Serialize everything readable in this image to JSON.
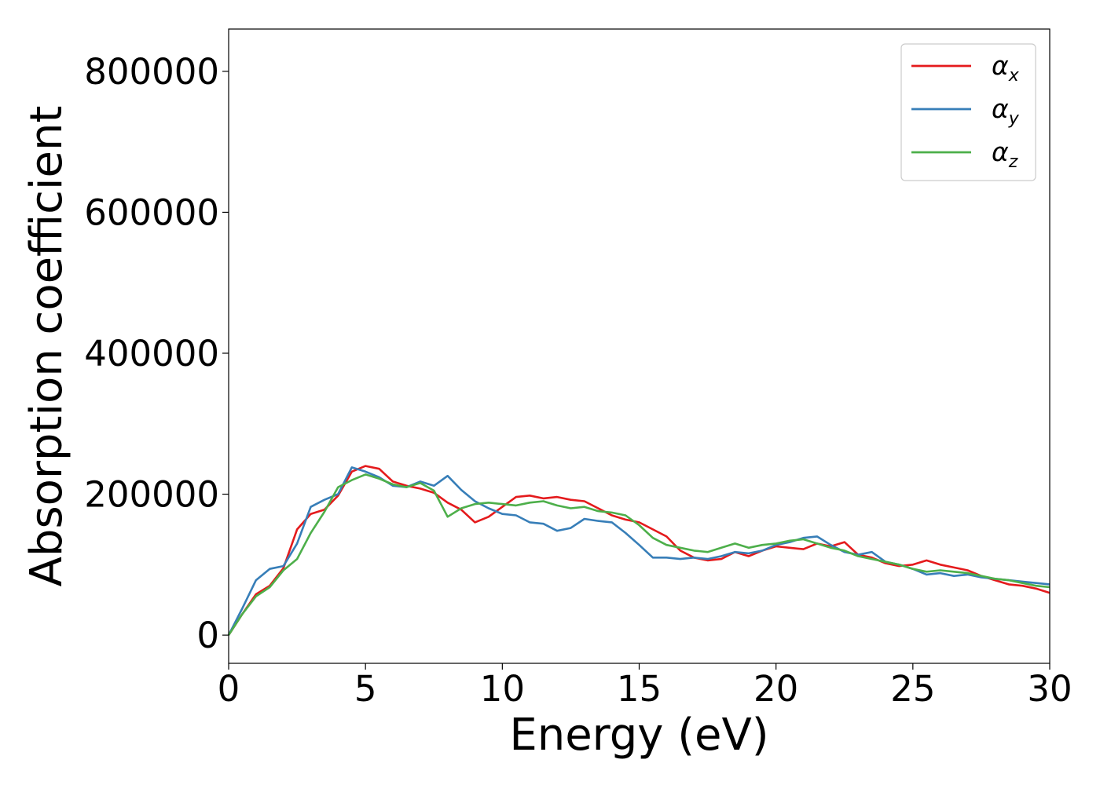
{
  "chart_data": {
    "type": "line",
    "title": "",
    "xlabel": "Energy (eV)",
    "ylabel": "Absorption coefficient",
    "xlim": [
      0,
      30
    ],
    "ylim": [
      -40000,
      860000
    ],
    "xticks": [
      0,
      5,
      10,
      15,
      20,
      25,
      30
    ],
    "xtick_labels": [
      "0",
      "5",
      "10",
      "15",
      "20",
      "25",
      "30"
    ],
    "yticks": [
      0,
      200000,
      400000,
      600000,
      800000
    ],
    "ytick_labels": [
      "0",
      "200000",
      "400000",
      "600000",
      "800000"
    ],
    "grid": false,
    "legend_position": "top-right",
    "x": [
      0,
      0.5,
      1,
      1.5,
      2,
      2.5,
      3,
      3.5,
      4,
      4.5,
      5,
      5.5,
      6,
      6.5,
      7,
      7.5,
      8,
      8.5,
      9,
      9.5,
      10,
      10.5,
      11,
      11.5,
      12,
      12.5,
      13,
      13.5,
      14,
      14.5,
      15,
      15.5,
      16,
      16.5,
      17,
      17.5,
      18,
      18.5,
      19,
      19.5,
      20,
      20.5,
      21,
      21.5,
      22,
      22.5,
      23,
      23.5,
      24,
      24.5,
      25,
      25.5,
      26,
      26.5,
      27,
      27.5,
      28,
      28.5,
      29,
      29.5,
      30
    ],
    "series": [
      {
        "name": "α",
        "subscript": "x",
        "color": "#e41a1c",
        "values": [
          0,
          30000,
          58000,
          70000,
          95000,
          150000,
          172000,
          178000,
          198000,
          232000,
          240000,
          236000,
          218000,
          212000,
          208000,
          202000,
          188000,
          178000,
          160000,
          168000,
          182000,
          196000,
          198000,
          194000,
          196000,
          192000,
          190000,
          180000,
          170000,
          164000,
          160000,
          150000,
          140000,
          120000,
          110000,
          106000,
          108000,
          118000,
          112000,
          120000,
          126000,
          124000,
          122000,
          130000,
          126000,
          132000,
          114000,
          110000,
          102000,
          98000,
          100000,
          106000,
          100000,
          96000,
          92000,
          84000,
          78000,
          72000,
          70000,
          66000,
          60000
        ]
      },
      {
        "name": "α",
        "subscript": "y",
        "color": "#377eb8",
        "values": [
          0,
          38000,
          78000,
          94000,
          98000,
          130000,
          182000,
          192000,
          200000,
          238000,
          232000,
          224000,
          212000,
          210000,
          218000,
          212000,
          226000,
          206000,
          190000,
          180000,
          172000,
          170000,
          160000,
          158000,
          148000,
          152000,
          165000,
          162000,
          160000,
          145000,
          128000,
          110000,
          110000,
          108000,
          110000,
          108000,
          112000,
          118000,
          116000,
          120000,
          128000,
          132000,
          138000,
          140000,
          128000,
          118000,
          114000,
          118000,
          104000,
          100000,
          94000,
          86000,
          88000,
          84000,
          86000,
          82000,
          80000,
          78000,
          76000,
          74000,
          72000
        ]
      },
      {
        "name": "α",
        "subscript": "z",
        "color": "#4daf4a",
        "values": [
          0,
          30000,
          55000,
          68000,
          92000,
          108000,
          145000,
          175000,
          210000,
          220000,
          228000,
          222000,
          214000,
          210000,
          216000,
          205000,
          168000,
          180000,
          186000,
          188000,
          186000,
          184000,
          188000,
          190000,
          184000,
          180000,
          182000,
          176000,
          174000,
          170000,
          156000,
          138000,
          128000,
          124000,
          120000,
          118000,
          124000,
          130000,
          124000,
          128000,
          130000,
          134000,
          136000,
          130000,
          124000,
          120000,
          112000,
          108000,
          104000,
          100000,
          94000,
          90000,
          92000,
          90000,
          88000,
          84000,
          80000,
          78000,
          74000,
          70000,
          68000
        ]
      }
    ]
  }
}
